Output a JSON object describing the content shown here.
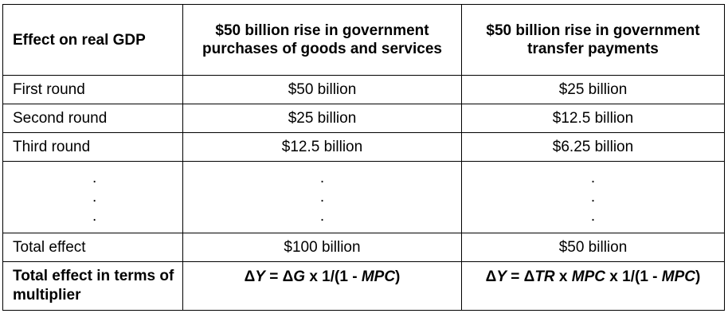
{
  "header": {
    "col0": "Effect on real GDP",
    "col1": "$50 billion rise in government purchases of goods and services",
    "col2": "$50 billion rise in government transfer payments"
  },
  "rows": [
    {
      "label": "First round",
      "purchases": "$50 billion",
      "transfers": "$25 billion"
    },
    {
      "label": "Second round",
      "purchases": "$25 billion",
      "transfers": "$12.5 billion"
    },
    {
      "label": "Third round",
      "purchases": "$12.5 billion",
      "transfers": "$6.25 billion"
    }
  ],
  "ellipsis": ".",
  "total": {
    "label": "Total effect",
    "purchases": "$100 billion",
    "transfers": "$50 billion"
  },
  "multiplier": {
    "label": "Total effect in terms of multiplier",
    "purchases_formula": {
      "p1": "Δ",
      "p2": "Y",
      "p3": " = Δ",
      "p4": "G",
      "p5": " x 1/(1 - ",
      "p6": "MPC",
      "p7": ")"
    },
    "transfers_formula": {
      "p1": "Δ",
      "p2": "Y",
      "p3": " = Δ",
      "p4": "TR",
      "p5": " x ",
      "p6": "MPC",
      "p7": " x 1/(1 - ",
      "p8": "MPC",
      "p9": ")"
    }
  }
}
